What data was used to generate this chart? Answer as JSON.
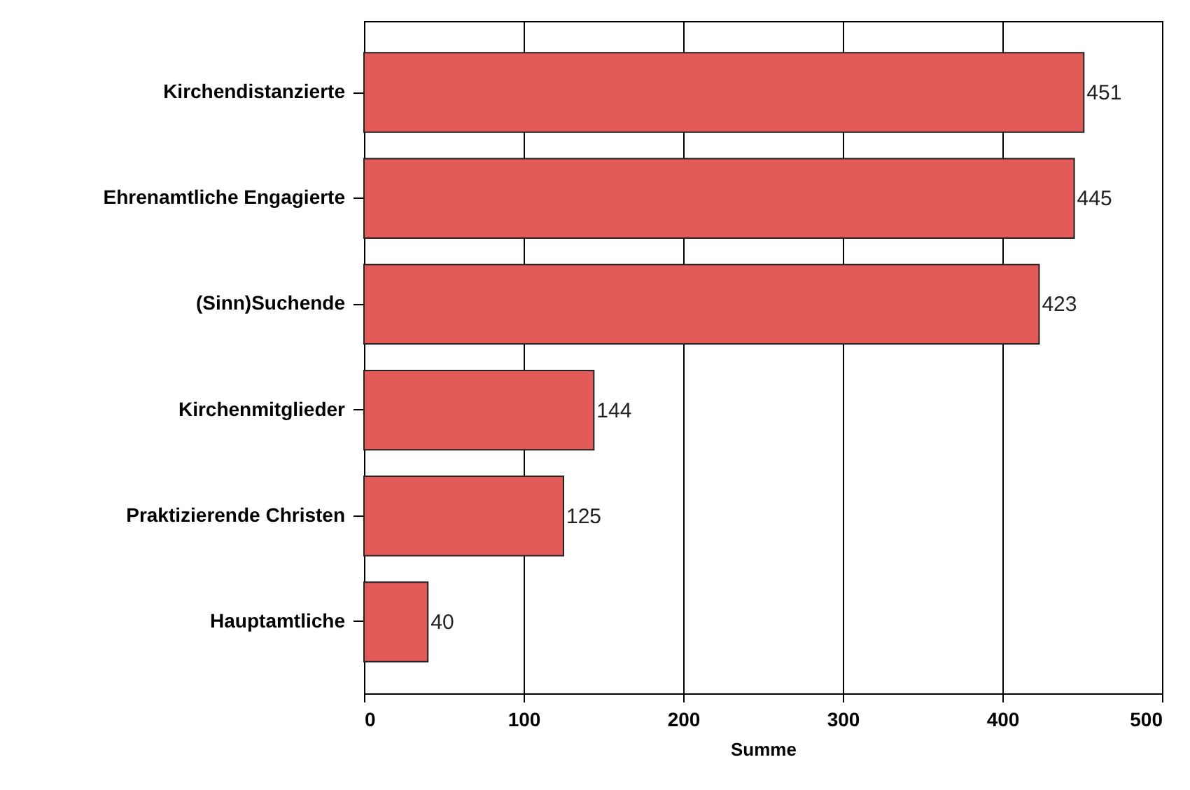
{
  "chart_data": {
    "type": "bar",
    "orientation": "horizontal",
    "xlabel": "Summe",
    "categories": [
      "Kirchendistanzierte",
      "Ehrenamtliche Engagierte",
      "(Sinn)Suchende",
      "Kirchenmitglieder",
      "Praktizierende Christen",
      "Hauptamtliche"
    ],
    "values": [
      451,
      445,
      423,
      144,
      125,
      40
    ],
    "color": "#e35b59",
    "xlim": [
      0,
      500
    ],
    "xticks": [
      0,
      100,
      200,
      300,
      400,
      500
    ],
    "grid": "x",
    "data_labels": true
  }
}
